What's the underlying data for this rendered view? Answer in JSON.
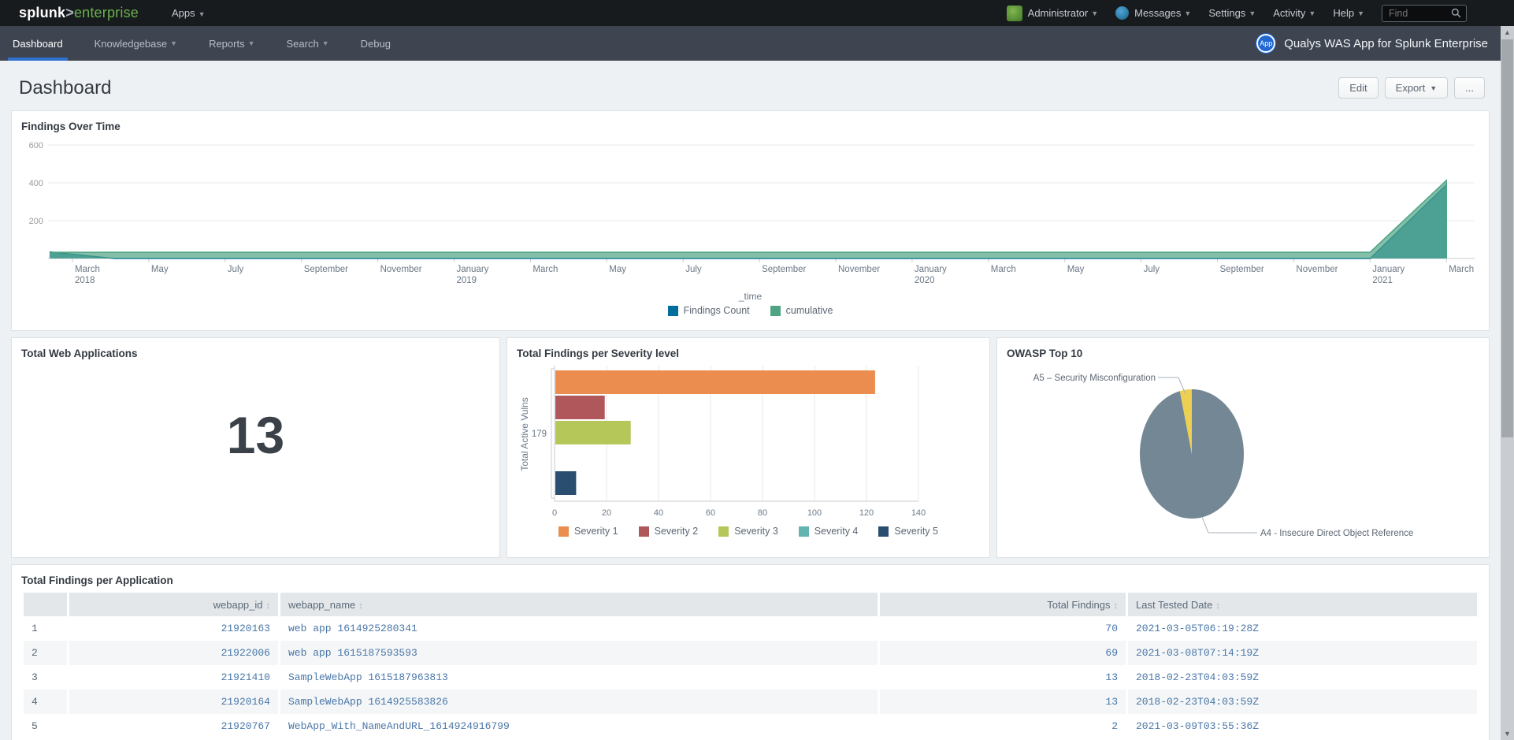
{
  "topbar": {
    "logo_splunk": "splunk",
    "logo_gt": ">",
    "logo_product": "enterprise",
    "apps_label": "Apps",
    "user_label": "Administrator",
    "messages_label": "Messages",
    "settings_label": "Settings",
    "activity_label": "Activity",
    "help_label": "Help",
    "find_placeholder": "Find"
  },
  "appbar": {
    "tabs": [
      {
        "label": "Dashboard",
        "active": true,
        "caret": false
      },
      {
        "label": "Knowledgebase",
        "active": false,
        "caret": true
      },
      {
        "label": "Reports",
        "active": false,
        "caret": true
      },
      {
        "label": "Search",
        "active": false,
        "caret": true
      },
      {
        "label": "Debug",
        "active": false,
        "caret": false
      }
    ],
    "app_badge": "App",
    "app_title": "Qualys WAS App for Splunk Enterprise"
  },
  "header": {
    "title": "Dashboard",
    "edit_label": "Edit",
    "export_label": "Export",
    "more_label": "..."
  },
  "colors": {
    "accent_tab": "#2f6fd0",
    "findings_count": "#006d9c",
    "cumulative": "#4fa484",
    "severity": [
      "#ea8d4e",
      "#af575a",
      "#b6c75a",
      "#62b3b2",
      "#294e70"
    ],
    "pie_gray": "#738795",
    "pie_yellow": "#edd051",
    "link": "#4a77a8"
  },
  "chart_data": [
    {
      "type": "area",
      "title": "Findings Over Time",
      "xlabel": "_time",
      "ylim": [
        0,
        650
      ],
      "yticks": [
        200,
        400,
        600
      ],
      "grid": "horizontal",
      "legend_position": "bottom",
      "xticks": [
        "March|2018",
        "May",
        "July",
        "September",
        "November",
        "January|2019",
        "March",
        "May",
        "July",
        "September",
        "November",
        "January|2020",
        "March",
        "May",
        "July",
        "September",
        "November",
        "January|2021",
        "March"
      ],
      "series": [
        {
          "name": "Findings Count",
          "color": "#006d9c",
          "points": [
            [
              -0.3,
              35
            ],
            [
              0.55,
              0
            ],
            [
              17,
              0
            ],
            [
              18,
              390
            ]
          ]
        },
        {
          "name": "cumulative",
          "color": "#4fa484",
          "points": [
            [
              -0.3,
              33
            ],
            [
              17,
              33
            ],
            [
              18,
              413
            ]
          ]
        }
      ]
    },
    {
      "type": "single_value",
      "title": "Total Web Applications",
      "value": "13"
    },
    {
      "type": "bar",
      "orientation": "horizontal",
      "title": "Total Findings per Severity level",
      "ylabel": "Total Active Vulns",
      "category": "179",
      "xlim": [
        0,
        145
      ],
      "xticks": [
        0,
        20,
        40,
        60,
        80,
        100,
        120,
        140
      ],
      "legend_position": "bottom",
      "series": [
        {
          "name": "Severity 1",
          "color": "#ea8d4e",
          "value": 123
        },
        {
          "name": "Severity 2",
          "color": "#af575a",
          "value": 19
        },
        {
          "name": "Severity 3",
          "color": "#b6c75a",
          "value": 29
        },
        {
          "name": "Severity 4",
          "color": "#62b3b2",
          "value": 0
        },
        {
          "name": "Severity 5",
          "color": "#294e70",
          "value": 8
        }
      ]
    },
    {
      "type": "pie",
      "title": "OWASP Top 10",
      "slices": [
        {
          "label": "A4 - Insecure Direct Object Reference",
          "color": "#738795",
          "pct": 96.3
        },
        {
          "label": "A5 – Security Misconfiguration",
          "color": "#edd051",
          "pct": 3.7
        }
      ]
    },
    {
      "type": "table",
      "title": "Total Findings per Application",
      "columns": [
        "webapp_id",
        "webapp_name",
        "Total Findings",
        "Last Tested Date"
      ],
      "rows": [
        [
          "1",
          "21920163",
          "web app 1614925280341",
          "70",
          "2021-03-05T06:19:28Z"
        ],
        [
          "2",
          "21922006",
          "web app 1615187593593",
          "69",
          "2021-03-08T07:14:19Z"
        ],
        [
          "3",
          "21921410",
          "SampleWebApp 1615187963813",
          "13",
          "2018-02-23T04:03:59Z"
        ],
        [
          "4",
          "21920164",
          "SampleWebApp 1614925583826",
          "13",
          "2018-02-23T04:03:59Z"
        ],
        [
          "5",
          "21920767",
          "WebApp_With_NameAndURL_1614924916799",
          "2",
          "2021-03-09T03:55:36Z"
        ]
      ]
    }
  ]
}
